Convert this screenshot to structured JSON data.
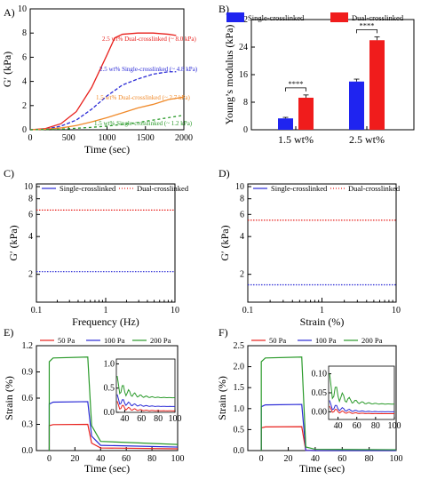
{
  "panels": {
    "A": "A)",
    "B": "B)",
    "C": "C)",
    "D": "D)",
    "E": "E)",
    "F": "F)"
  },
  "chart_data": [
    {
      "panel": "A",
      "type": "line",
      "xlabel": "Time (sec)",
      "ylabel": "G′ (kPa)",
      "xlim": [
        0,
        2000
      ],
      "ylim": [
        0,
        10
      ],
      "xticks": [
        "0",
        "500",
        "1000",
        "1500",
        "2000"
      ],
      "yticks": [
        "0",
        "2",
        "4",
        "6",
        "8",
        "10"
      ],
      "series": [
        {
          "name": "2.5 wt% Dual-crosslinked (~ 8.0 kPa)",
          "color": "#e8211d",
          "dash": "solid",
          "x": [
            0,
            200,
            400,
            600,
            800,
            1000,
            1100,
            1200,
            1400,
            1600,
            1800,
            1900
          ],
          "y": [
            0,
            0.1,
            0.5,
            1.5,
            3.5,
            6.2,
            7.6,
            7.9,
            8.0,
            8.0,
            7.9,
            7.8
          ]
        },
        {
          "name": "2.5 wt% Single-crosslinked (~ 4.8 kPa)",
          "color": "#2a2ad6",
          "dash": "4,2",
          "x": [
            0,
            200,
            400,
            600,
            800,
            1000,
            1200,
            1400,
            1600,
            1800,
            1900
          ],
          "y": [
            0,
            0.05,
            0.3,
            0.8,
            1.7,
            2.8,
            3.7,
            4.2,
            4.6,
            4.8,
            4.8
          ]
        },
        {
          "name": "1.5 wt% Dual-crosslinked (~ 2.7 kPa)",
          "color": "#f08a2a",
          "dash": "solid",
          "x": [
            0,
            200,
            400,
            600,
            800,
            1000,
            1200,
            1400,
            1600,
            1800,
            2000
          ],
          "y": [
            0,
            0.05,
            0.15,
            0.35,
            0.65,
            1.0,
            1.4,
            1.8,
            2.1,
            2.5,
            2.7
          ]
        },
        {
          "name": "1.5 wt% Single-crosslinked (~ 1.2 kPa)",
          "color": "#2a9a2a",
          "dash": "3,3",
          "x": [
            0,
            400,
            800,
            1000,
            1200,
            1400,
            1600,
            1800,
            2000
          ],
          "y": [
            0,
            0.05,
            0.2,
            0.3,
            0.45,
            0.6,
            0.8,
            1.0,
            1.2
          ]
        }
      ]
    },
    {
      "panel": "B",
      "type": "bar",
      "ylabel": "Young’s modulus (kPa)",
      "ylim": [
        0,
        32
      ],
      "categories": [
        "1.5 wt%",
        "2.5 wt%"
      ],
      "yticks": [
        "0",
        "8",
        "16",
        "24",
        "32"
      ],
      "legend_position": "top",
      "series": [
        {
          "name": "Single-crosslinked",
          "color": "#1f24f0",
          "values": [
            3.3,
            14.0
          ],
          "err": [
            0.3,
            0.7
          ]
        },
        {
          "name": "Dual-crosslinked",
          "color": "#f01c1c",
          "values": [
            9.3,
            26.0
          ],
          "err": [
            0.8,
            1.0
          ]
        }
      ],
      "significance": "****"
    },
    {
      "panel": "C",
      "type": "line",
      "scale": "log-log",
      "xlabel": "Frequency (Hz)",
      "ylabel": "G′ (kPa)",
      "xticks": [
        "0.1",
        "1",
        "10"
      ],
      "yticks": [
        "2",
        "4",
        "6",
        "8",
        "10"
      ],
      "series": [
        {
          "name": "Single-crosslinked",
          "color": "#2a2ad6",
          "y_const": 2.1
        },
        {
          "name": "Dual-crosslinked",
          "color": "#e8211d",
          "y_const": 6.5
        }
      ]
    },
    {
      "panel": "D",
      "type": "line",
      "scale": "log-log",
      "xlabel": "Strain (%)",
      "ylabel": "G′ (kPa)",
      "xticks": [
        "0.1",
        "1",
        "10"
      ],
      "yticks": [
        "2",
        "4",
        "6",
        "8",
        "10"
      ],
      "series": [
        {
          "name": "Single-crosslinked",
          "color": "#2a2ad6",
          "y_const": 1.65
        },
        {
          "name": "Dual-crosslinked",
          "color": "#e8211d",
          "y_const": 5.4
        }
      ]
    },
    {
      "panel": "E",
      "type": "line",
      "xlabel": "Time (sec)",
      "ylabel": "Strain (%)",
      "xlim": [
        -10,
        100
      ],
      "ylim": [
        0,
        1.2
      ],
      "xticks": [
        "0",
        "20",
        "40",
        "60",
        "80",
        "100"
      ],
      "yticks": [
        "0.0",
        "0.3",
        "0.6",
        "0.9",
        "1.2"
      ],
      "series": [
        {
          "name": "50 Pa",
          "color": "#e8211d",
          "plateau": 0.3,
          "residual": 0.02
        },
        {
          "name": "100 Pa",
          "color": "#2a2ad6",
          "plateau": 0.56,
          "residual": 0.04
        },
        {
          "name": "200 Pa",
          "color": "#2a9a2a",
          "plateau": 1.07,
          "residual": 0.07
        }
      ],
      "inset": {
        "xticks": [
          "40",
          "60",
          "80",
          "100"
        ],
        "yticks": [
          "0.0",
          "0.5",
          "1.0"
        ]
      }
    },
    {
      "panel": "F",
      "type": "line",
      "xlabel": "Time (sec)",
      "ylabel": "Strain (%)",
      "xlim": [
        -10,
        100
      ],
      "ylim": [
        0,
        2.5
      ],
      "xticks": [
        "0",
        "20",
        "40",
        "60",
        "80",
        "100"
      ],
      "yticks": [
        "0.0",
        "0.5",
        "1.0",
        "1.5",
        "2.0",
        "2.5"
      ],
      "series": [
        {
          "name": "50 Pa",
          "color": "#e8211d",
          "plateau": 0.57,
          "residual": 0.0
        },
        {
          "name": "100 Pa",
          "color": "#2a2ad6",
          "plateau": 1.1,
          "residual": 0.0
        },
        {
          "name": "200 Pa",
          "color": "#2a9a2a",
          "plateau": 2.23,
          "residual": 0.02
        }
      ],
      "inset": {
        "xticks": [
          "40",
          "60",
          "80",
          "100"
        ],
        "yticks": [
          "0.00",
          "0.05",
          "0.10"
        ]
      }
    }
  ]
}
